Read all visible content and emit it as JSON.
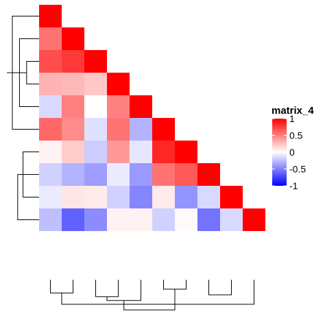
{
  "chart_data": {
    "type": "heatmap",
    "title": "",
    "xlabel": "",
    "ylabel": "",
    "shape": "lower-triangle",
    "size": 10,
    "values": [
      [
        1
      ],
      [
        0.55,
        1
      ],
      [
        0.7,
        0.78,
        1
      ],
      [
        0.3,
        0.28,
        0.22,
        1
      ],
      [
        -0.15,
        0.5,
        0.0,
        0.5,
        1
      ],
      [
        0.6,
        0.45,
        -0.12,
        0.55,
        -0.3,
        1
      ],
      [
        0.05,
        0.2,
        -0.2,
        0.4,
        -0.1,
        0.85,
        1
      ],
      [
        -0.18,
        -0.3,
        -0.38,
        -0.08,
        -0.4,
        0.55,
        0.65,
        1
      ],
      [
        -0.08,
        0.1,
        0.08,
        -0.18,
        -0.48,
        0.08,
        -0.42,
        -0.15,
        1
      ],
      [
        -0.25,
        -0.62,
        -0.45,
        0.05,
        0.05,
        -0.18,
        0.02,
        -0.55,
        -0.15,
        1
      ]
    ],
    "legend": {
      "title": "matrix_4",
      "ticks": [
        "1",
        "0.5",
        "0",
        "-0.5",
        "-1"
      ],
      "tick_values": [
        1,
        0.5,
        0,
        -0.5,
        -1
      ],
      "range": [
        -1,
        1
      ],
      "placement": "right"
    },
    "colors": {
      "low": "#0000ff",
      "mid": "#ffffff",
      "high": "#ff0000",
      "line": "#000000"
    },
    "row_dendrogram": {
      "side": "left",
      "merges": [
        [
          2,
          3,
          0.35
        ],
        [
          1,
          4,
          0.55
        ],
        [
          0,
          5,
          0.75
        ],
        [
          6,
          8,
          0.45
        ],
        [
          7,
          9,
          0.6
        ],
        [
          10,
          11,
          0.9
        ]
      ]
    },
    "column_dendrogram": {
      "side": "bottom",
      "merges": [
        [
          0,
          1,
          0.35
        ],
        [
          2,
          3,
          0.45
        ],
        [
          4,
          11,
          0.55
        ],
        [
          5,
          6,
          0.25
        ],
        [
          7,
          8,
          0.4
        ],
        [
          9,
          10,
          0.65
        ],
        [
          12,
          13,
          0.8
        ]
      ]
    }
  }
}
